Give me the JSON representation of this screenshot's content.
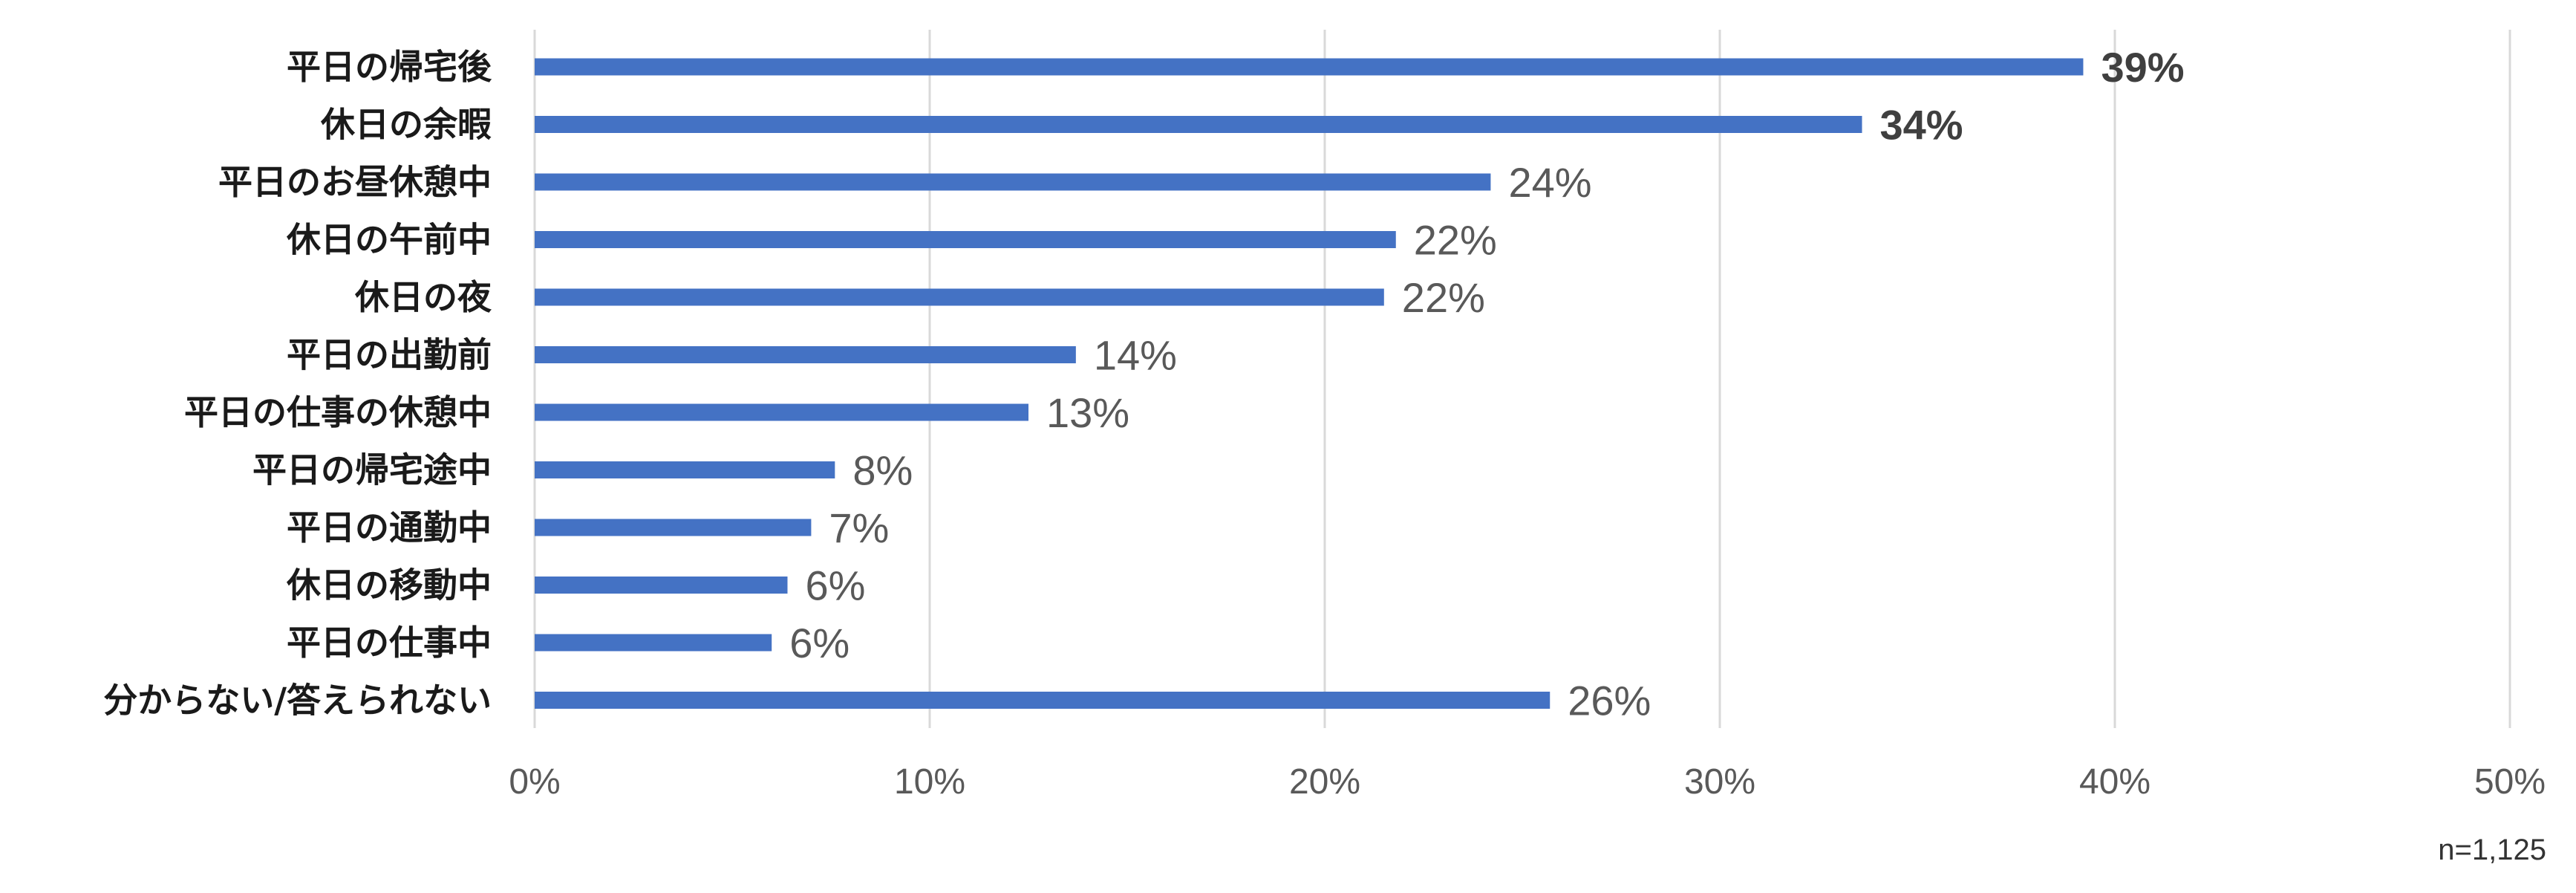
{
  "chart_data": {
    "type": "bar",
    "orientation": "horizontal",
    "categories": [
      "平日の帰宅後",
      "休日の余暇",
      "平日のお昼休憩中",
      "休日の午前中",
      "休日の夜",
      "平日の出勤前",
      "平日の仕事の休憩中",
      "平日の帰宅途中",
      "平日の通勤中",
      "休日の移動中",
      "平日の仕事中",
      "分からない/答えられない"
    ],
    "values": [
      39.2,
      33.6,
      24.2,
      21.8,
      21.5,
      13.7,
      12.5,
      7.6,
      7.0,
      6.4,
      6.0,
      25.7
    ],
    "data_labels": [
      "39%",
      "34%",
      "24%",
      "22%",
      "22%",
      "14%",
      "13%",
      "8%",
      "7%",
      "6%",
      "6%",
      "26%"
    ],
    "bold_labels": [
      true,
      true,
      false,
      false,
      false,
      false,
      false,
      false,
      false,
      false,
      false,
      false
    ],
    "xlim": [
      0,
      50
    ],
    "xticks": [
      "0%",
      "10%",
      "20%",
      "30%",
      "40%",
      "50%"
    ],
    "grid": "vertical",
    "colors": {
      "bar": "#4472C4",
      "grid": "#D9D9D9"
    }
  },
  "note": "n=1,125"
}
